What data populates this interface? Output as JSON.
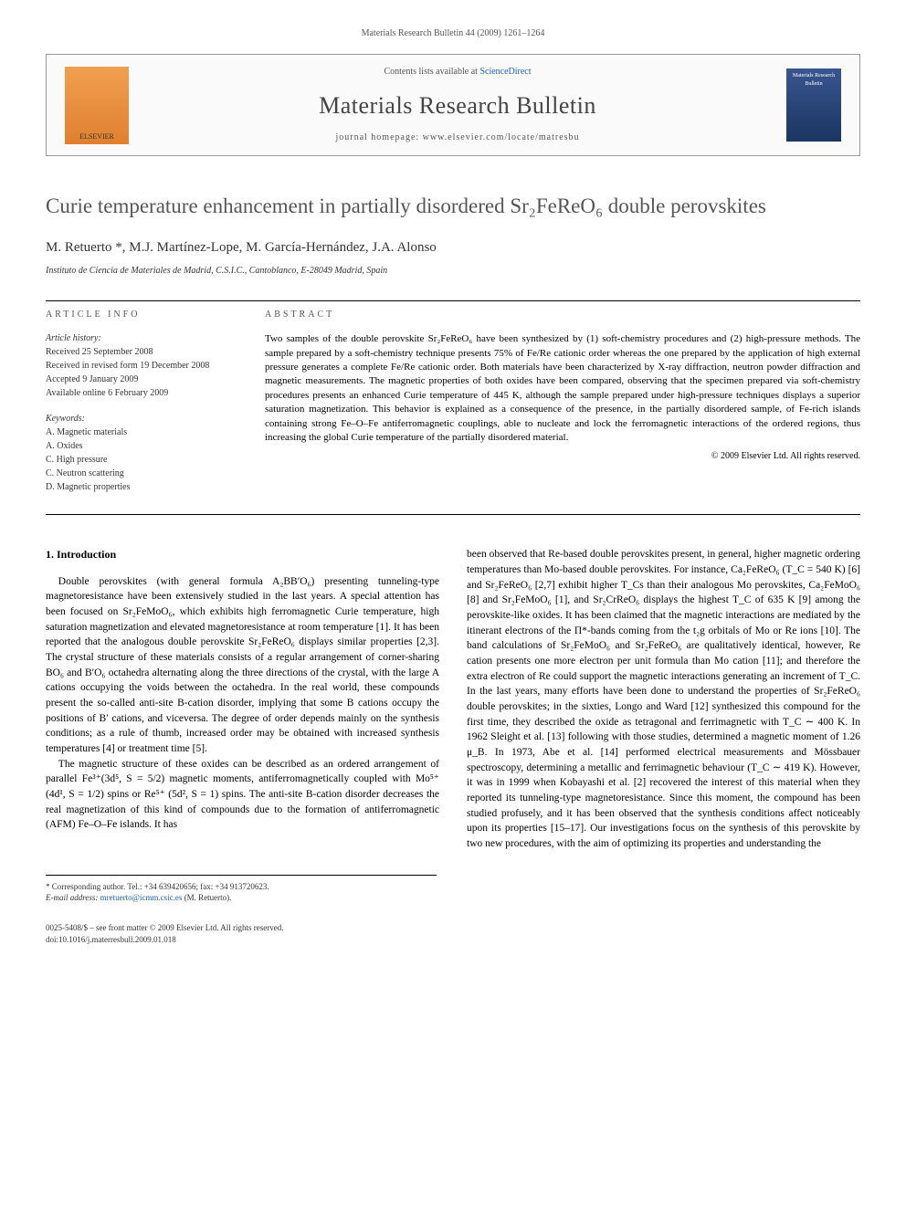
{
  "header": {
    "citation": "Materials Research Bulletin 44 (2009) 1261–1264"
  },
  "journalBox": {
    "publisher": "ELSEVIER",
    "contentsLine": "Contents lists available at",
    "contentsLink": "ScienceDirect",
    "journalName": "Materials Research Bulletin",
    "homepageLabel": "journal homepage:",
    "homepageUrl": "www.elsevier.com/locate/matresbu",
    "coverText": "Materials Research Bulletin"
  },
  "title": "Curie temperature enhancement in partially disordered Sr₂FeReO₆ double perovskites",
  "authors": "M. Retuerto *, M.J. Martínez-Lope, M. García-Hernández, J.A. Alonso",
  "affiliation": "Instituto de Ciencia de Materiales de Madrid, C.S.I.C., Cantoblanco, E-28049 Madrid, Spain",
  "articleInfo": {
    "heading": "ARTICLE INFO",
    "historyLabel": "Article history:",
    "history": [
      "Received 25 September 2008",
      "Received in revised form 19 December 2008",
      "Accepted 9 January 2009",
      "Available online 6 February 2009"
    ],
    "keywordsLabel": "Keywords:",
    "keywords": [
      "A. Magnetic materials",
      "A. Oxides",
      "C. High pressure",
      "C. Neutron scattering",
      "D. Magnetic properties"
    ]
  },
  "abstract": {
    "heading": "ABSTRACT",
    "text": "Two samples of the double perovskite Sr₂FeReO₆ have been synthesized by (1) soft-chemistry procedures and (2) high-pressure methods. The sample prepared by a soft-chemistry technique presents 75% of Fe/Re cationic order whereas the one prepared by the application of high external pressure generates a complete Fe/Re cationic order. Both materials have been characterized by X-ray diffraction, neutron powder diffraction and magnetic measurements. The magnetic properties of both oxides have been compared, observing that the specimen prepared via soft-chemistry procedures presents an enhanced Curie temperature of 445 K, although the sample prepared under high-pressure techniques displays a superior saturation magnetization. This behavior is explained as a consequence of the presence, in the partially disordered sample, of Fe-rich islands containing strong Fe–O–Fe antiferromagnetic couplings, able to nucleate and lock the ferromagnetic interactions of the ordered regions, thus increasing the global Curie temperature of the partially disordered material.",
    "copyright": "© 2009 Elsevier Ltd. All rights reserved."
  },
  "section1": {
    "heading": "1. Introduction",
    "para1": "Double perovskites (with general formula A₂BB′O₆) presenting tunneling-type magnetoresistance have been extensively studied in the last years. A special attention has been focused on Sr₂FeMoO₆, which exhibits high ferromagnetic Curie temperature, high saturation magnetization and elevated magnetoresistance at room temperature [1]. It has been reported that the analogous double perovskite Sr₂FeReO₆ displays similar properties [2,3]. The crystal structure of these materials consists of a regular arrangement of corner-sharing BO₆ and B′O₆ octahedra alternating along the three directions of the crystal, with the large A cations occupying the voids between the octahedra. In the real world, these compounds present the so-called anti-site B-cation disorder, implying that some B cations occupy the positions of B′ cations, and viceversa. The degree of order depends mainly on the synthesis conditions; as a rule of thumb, increased order may be obtained with increased synthesis temperatures [4] or treatment time [5].",
    "para2": "The magnetic structure of these oxides can be described as an ordered arrangement of parallel Fe³⁺(3d⁵, S = 5/2) magnetic moments, antiferromagnetically coupled with Mo⁵⁺ (4d¹, S = 1/2) spins or Re⁵⁺ (5d², S = 1) spins. The anti-site B-cation disorder decreases the real magnetization of this kind of compounds due to the formation of antiferromagnetic (AFM) Fe–O–Fe islands. It has",
    "para3": "been observed that Re-based double perovskites present, in general, higher magnetic ordering temperatures than Mo-based double perovskites. For instance, Ca₂FeReO₆ (T_C = 540 K) [6] and Sr₂FeReO₆ [2,7] exhibit higher T_Cs than their analogous Mo perovskites, Ca₂FeMoO₆ [8] and Sr₂FeMoO₆ [1], and Sr₂CrReO₆ displays the highest T_C of 635 K [9] among the perovskite-like oxides. It has been claimed that the magnetic interactions are mediated by the itinerant electrons of the Π*-bands coming from the t₂g orbitals of Mo or Re ions [10]. The band calculations of Sr₂FeMoO₆ and Sr₂FeReO₆ are qualitatively identical, however, Re cation presents one more electron per unit formula than Mo cation [11]; and therefore the extra electron of Re could support the magnetic interactions generating an increment of T_C. In the last years, many efforts have been done to understand the properties of Sr₂FeReO₆ double perovskites; in the sixties, Longo and Ward [12] synthesized this compound for the first time, they described the oxide as tetragonal and ferrimagnetic with T_C ∼ 400 K. In 1962 Sleight et al. [13] following with those studies, determined a magnetic moment of 1.26 μ_B. In 1973, Abe et al. [14] performed electrical measurements and Mössbauer spectroscopy, determining a metallic and ferrimagnetic behaviour (T_C ∼ 419 K). However, it was in 1999 when Kobayashi et al. [2] recovered the interest of this material when they reported its tunneling-type magnetoresistance. Since this moment, the compound has been studied profusely, and it has been observed that the synthesis conditions affect noticeably upon its properties [15–17]. Our investigations focus on the synthesis of this perovskite by two new procedures, with the aim of optimizing its properties and understanding the"
  },
  "footer": {
    "correspondingLabel": "* Corresponding author. Tel.: +34 639420656; fax: +34 913720623.",
    "emailLabel": "E-mail address:",
    "email": "mretuerto@icmm.csic.es",
    "emailSuffix": "(M. Retuerto).",
    "issn": "0025-5408/$ – see front matter © 2009 Elsevier Ltd. All rights reserved.",
    "doi": "doi:10.1016/j.materresbull.2009.01.018"
  },
  "colors": {
    "link": "#2060b0",
    "text": "#000000",
    "heading": "#555555",
    "border": "#999999"
  }
}
